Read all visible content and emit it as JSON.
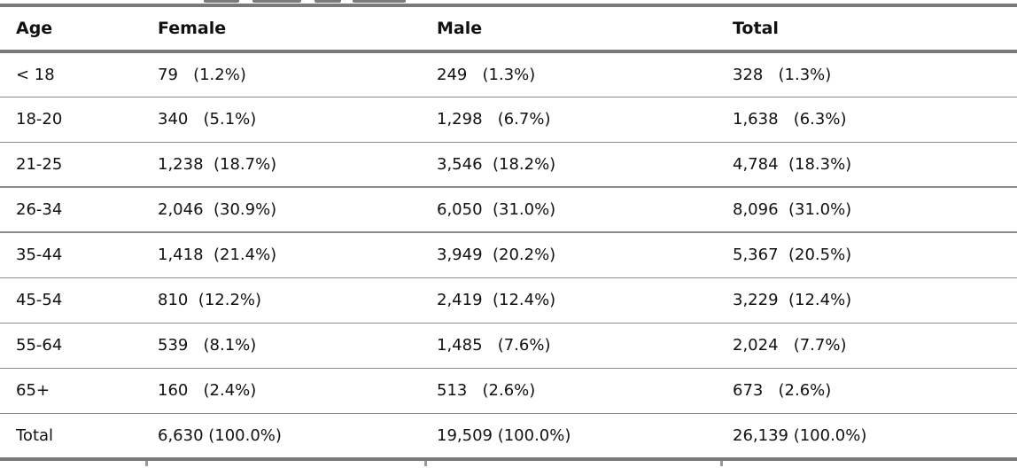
{
  "table": {
    "headers": [
      "Age",
      "Female",
      "Male",
      "Total"
    ],
    "rows": [
      {
        "age": "< 18",
        "female": "79   (1.2%)",
        "male": "249   (1.3%)",
        "total": "328   (1.3%)"
      },
      {
        "age": "18-20",
        "female": "340   (5.1%)",
        "male": "1,298   (6.7%)",
        "total": "1,638   (6.3%)"
      },
      {
        "age": "21-25",
        "female": "1,238  (18.7%)",
        "male": "3,546  (18.2%)",
        "total": "4,784  (18.3%)"
      },
      {
        "age": "26-34",
        "female": "2,046  (30.9%)",
        "male": "6,050  (31.0%)",
        "total": "8,096  (31.0%)"
      },
      {
        "age": "35-44",
        "female": "1,418  (21.4%)",
        "male": "3,949  (20.2%)",
        "total": "5,367  (20.5%)"
      },
      {
        "age": "45-54",
        "female": "810  (12.2%)",
        "male": "2,419  (12.4%)",
        "total": "3,229  (12.4%)"
      },
      {
        "age": "55-64",
        "female": "539   (8.1%)",
        "male": "1,485   (7.6%)",
        "total": "2,024   (7.7%)"
      },
      {
        "age": "65+",
        "female": "160   (2.4%)",
        "male": "513   (2.6%)",
        "total": "673   (2.6%)"
      },
      {
        "age": "Total",
        "female": "6,630 (100.0%)",
        "male": "19,509 (100.0%)",
        "total": "26,139 (100.0%)"
      }
    ]
  }
}
